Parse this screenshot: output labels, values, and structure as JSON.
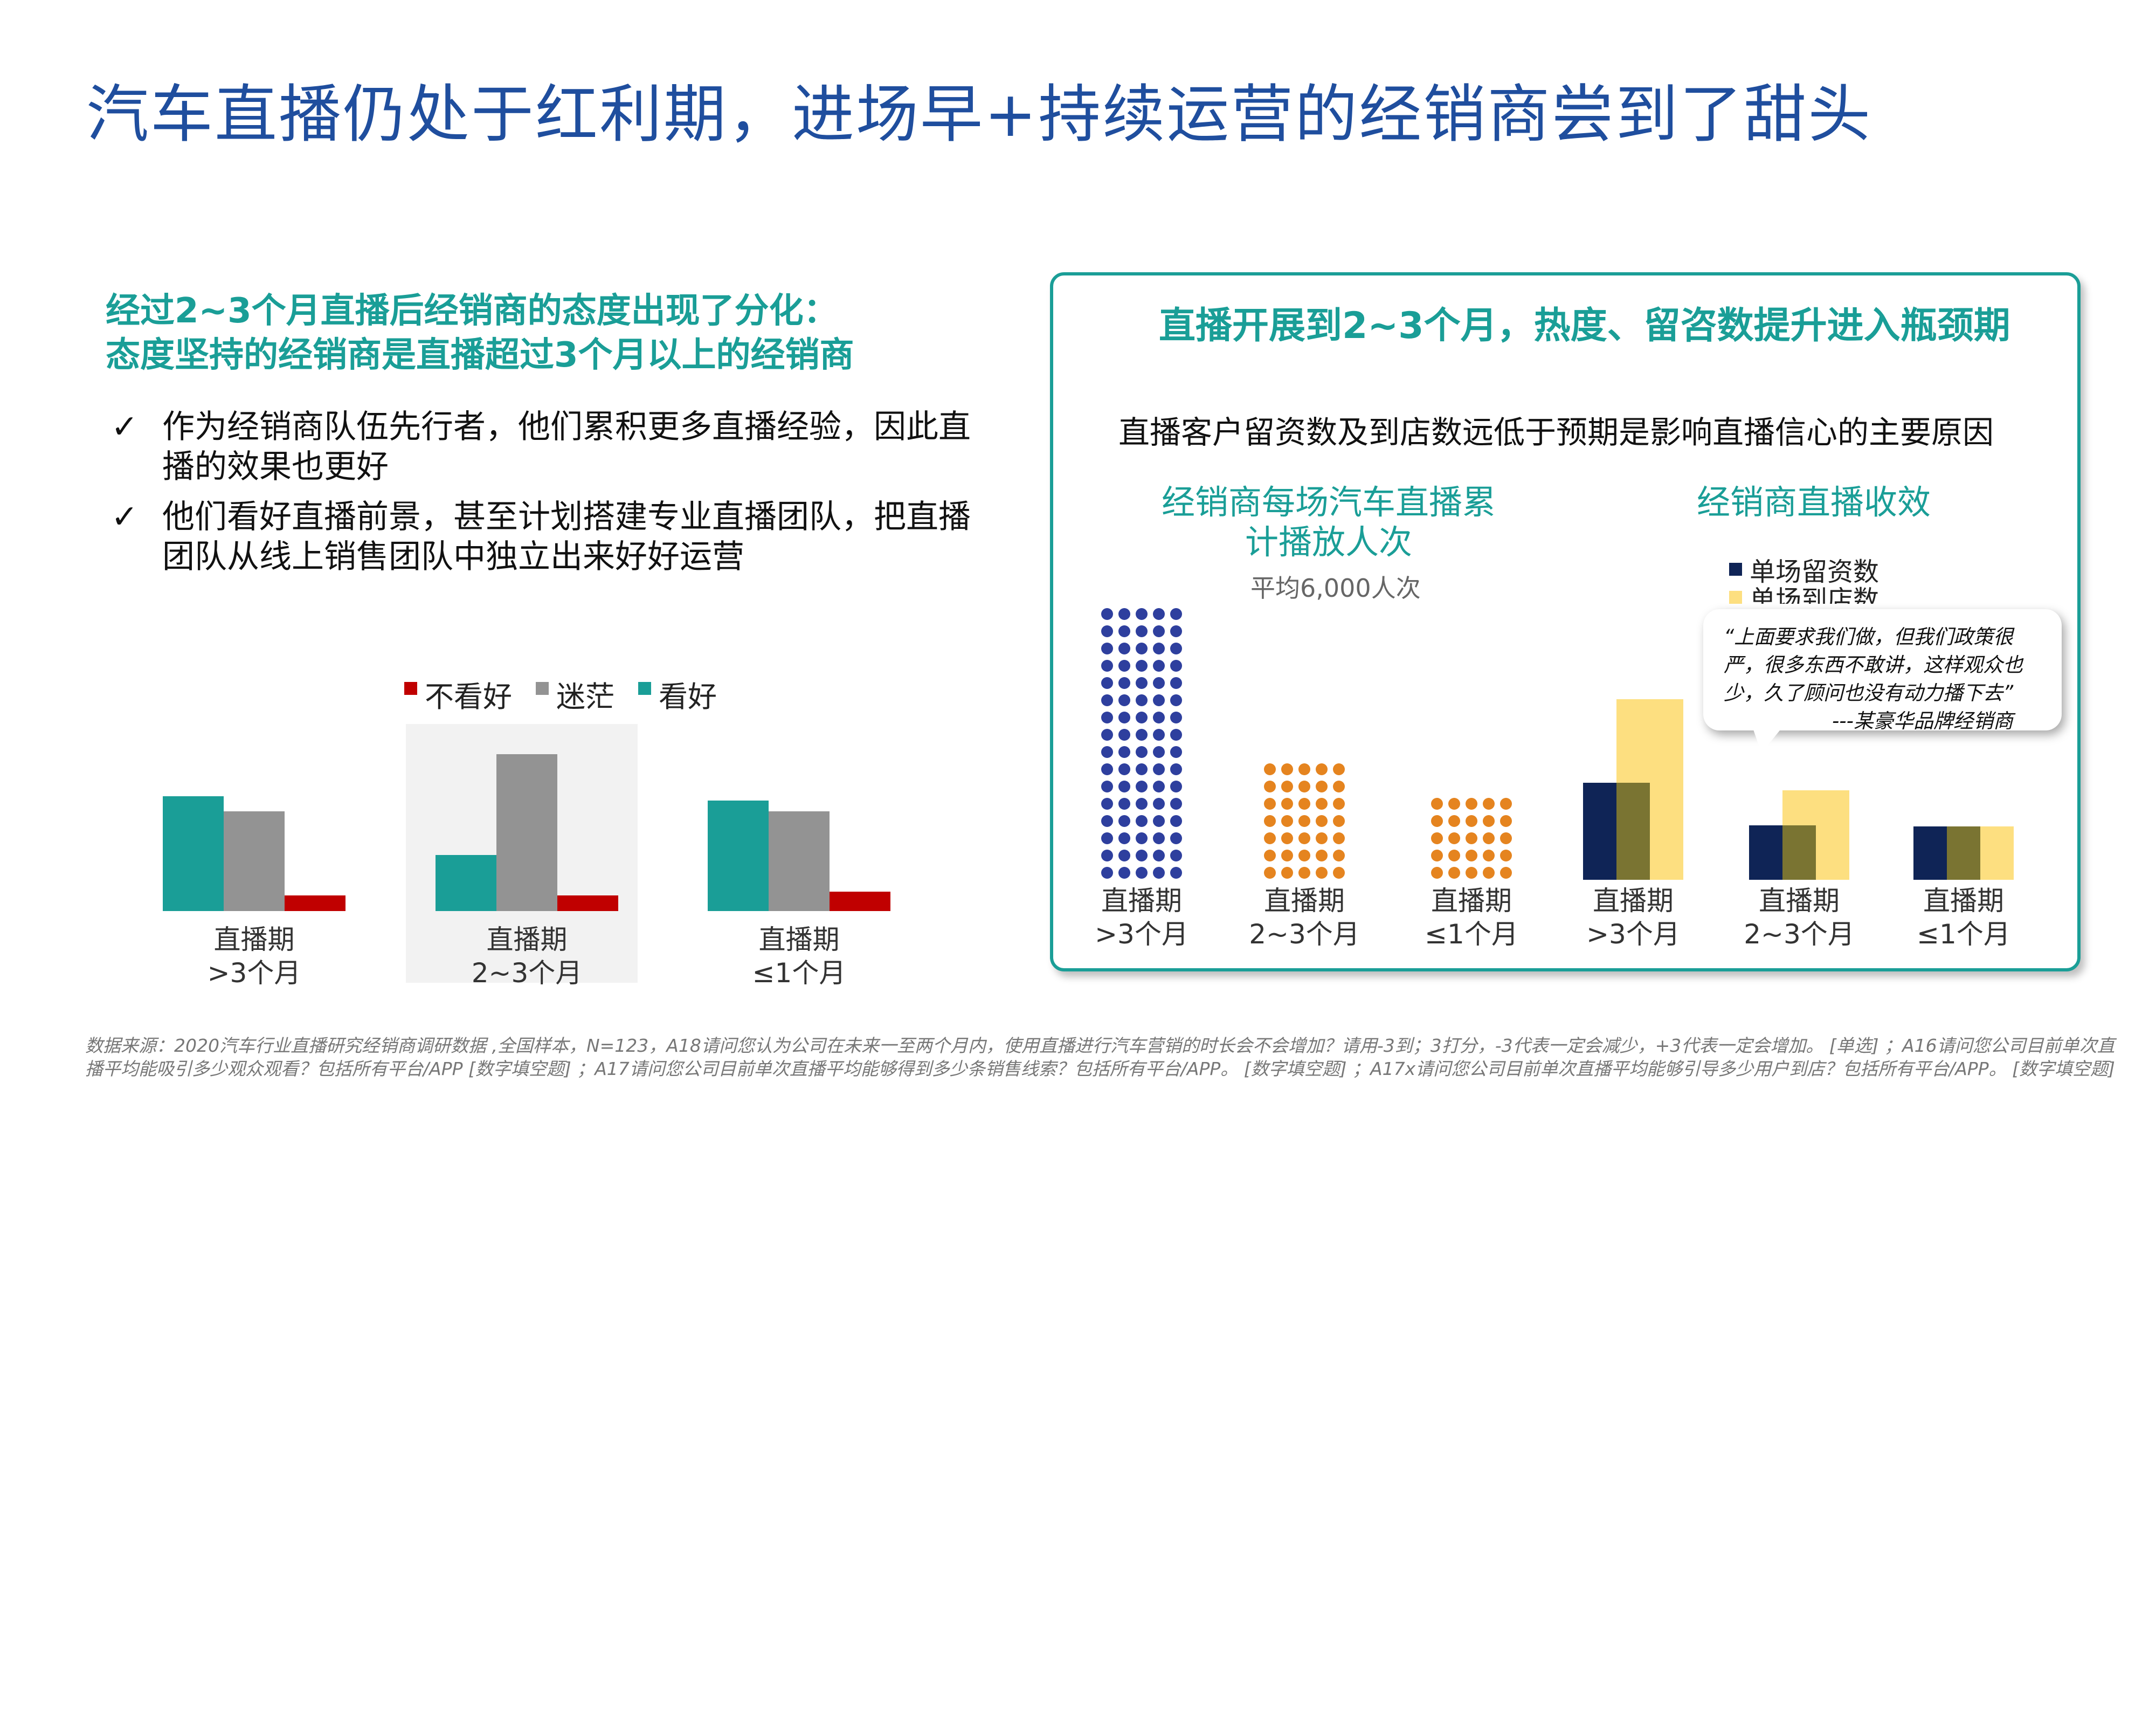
{
  "title": "汽车直播仍处于红利期，进场早+持续运营的经销商尝到了甜头",
  "left": {
    "heading_line1": "经过2~3个月直播后经销商的态度出现了分化：",
    "heading_line2": "态度坚持的经销商是直播超过3个月以上的经销商",
    "bullets": [
      {
        "mark": "✓",
        "text": "作为经销商队伍先行者，他们累积更多直播经验，因此直播的效果也更好"
      },
      {
        "mark": "✓",
        "text": "他们看好直播前景，甚至计划搭建专业直播团队，把直播团队从线上销售团队中独立出来好好运营"
      }
    ]
  },
  "panel": {
    "title": "直播开展到2~3个月，热度、留咨数提升进入瓶颈期",
    "subtitle": "直播客户留资数及到店数远低于预期是影响直播信心的主要原因",
    "left_chart_title": "经销商每场汽车直播累计播放人次",
    "left_chart_note": "平均6,000人次",
    "right_chart_title": "经销商直播收效",
    "quote_text": "“上面要求我们做，但我们政策很严，很多东西不敢讲，这样观众也少，久了顾问也没有动力播下去”",
    "quote_source": "---某豪华品牌经销商"
  },
  "footnote": "数据来源：2020汽车行业直播研究经销商调研数据 ,全国样本，N=123，A18请问您认为公司在未来一至两个月内，使用直播进行汽车营销的时长会不会增加？请用-3到；3打分，-3代表一定会减少，+3代表一定会增加。 [单选] ；A16请问您公司目前单次直播平均能吸引多少观众观看？包括所有平台/APP [数字填空题] ；A17请问您公司目前单次直播平均能够得到多少条销售线索？包括所有平台/APP。 [数字填空题] ；A17x请问您公司目前单次直播平均能够引导多少用户到店？包括所有平台/APP。 [数字填空题]",
  "colors": {
    "title_blue": "#1f4e9e",
    "teal": "#1a9e97",
    "gray": "#939393",
    "red": "#c00000",
    "dot_blue": "#2e3f9e",
    "dot_orange": "#e5841f",
    "navy": "#0f2456",
    "olive": "#7a7432",
    "light_yellow": "#fddf80"
  },
  "chart_data": [
    {
      "type": "bar",
      "title": "",
      "categories": [
        "直播期\n>3个月",
        "直播期\n2~3个月",
        "直播期\n≤1个月"
      ],
      "series": [
        {
          "name": "看好",
          "color": "#1a9e97",
          "values": [
            82,
            40,
            79
          ]
        },
        {
          "name": "迷茫",
          "color": "#939393",
          "values": [
            71,
            112,
            71
          ]
        },
        {
          "name": "不看好",
          "color": "#c00000",
          "values": [
            11,
            11,
            14
          ]
        }
      ],
      "legend": [
        "不看好",
        "迷茫",
        "看好"
      ],
      "legend_position": "top",
      "highlight_category": "直播期\n2~3个月",
      "grid": false
    },
    {
      "type": "pictogram",
      "title": "经销商每场汽车直播累计播放人次",
      "note": "平均6,000人次",
      "categories": [
        "直播期\n>3个月",
        "直播期\n2~3个月",
        "直播期\n≤1个月"
      ],
      "values": [
        80,
        35,
        25
      ],
      "columns": [
        5,
        5,
        5
      ],
      "dot_colors": [
        "#2e3f9e",
        "#e5841f",
        "#e5841f"
      ]
    },
    {
      "type": "bar",
      "title": "经销商直播收效",
      "categories": [
        "直播期\n>3个月",
        "直播期\n2~3个月",
        "直播期\n≤1个月"
      ],
      "series": [
        {
          "name": "单场留资数",
          "color": "#0f2456",
          "values": [
            100,
            56,
            55
          ]
        },
        {
          "name": "单场到店数",
          "color": "#fddf80",
          "values": [
            186,
            92,
            55
          ]
        }
      ],
      "overlap_color": "#7a7432",
      "legend_position": "top-right",
      "grid": false
    }
  ]
}
